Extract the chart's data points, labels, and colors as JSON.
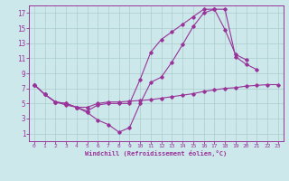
{
  "xlabel": "Windchill (Refroidissement éolien,°C)",
  "bg_color": "#cce8ea",
  "grid_color": "#aacccc",
  "line_color": "#993399",
  "xlim": [
    -0.5,
    23.5
  ],
  "ylim": [
    0,
    18
  ],
  "xticks": [
    0,
    1,
    2,
    3,
    4,
    5,
    6,
    7,
    8,
    9,
    10,
    11,
    12,
    13,
    14,
    15,
    16,
    17,
    18,
    19,
    20,
    21,
    22,
    23
  ],
  "yticks": [
    1,
    3,
    5,
    7,
    9,
    11,
    13,
    15,
    17
  ],
  "series1_x": [
    0,
    1,
    2,
    3,
    4,
    5,
    6,
    7,
    8,
    9,
    10,
    11,
    12,
    13,
    14,
    15,
    16,
    17,
    18,
    19,
    20,
    21,
    22,
    23
  ],
  "series1_y": [
    7.5,
    6.2,
    5.2,
    5.0,
    4.5,
    4.5,
    5.0,
    5.2,
    5.2,
    5.3,
    5.4,
    5.5,
    5.7,
    5.9,
    6.1,
    6.3,
    6.6,
    6.8,
    7.0,
    7.1,
    7.3,
    7.4,
    7.5,
    7.5
  ],
  "series2_x": [
    0,
    1,
    2,
    3,
    4,
    5,
    6,
    7,
    8,
    9,
    10,
    11,
    12,
    13,
    14,
    15,
    16,
    17,
    18,
    19,
    20,
    21
  ],
  "series2_y": [
    7.5,
    6.2,
    5.2,
    4.8,
    4.5,
    3.8,
    2.8,
    2.2,
    1.2,
    1.8,
    5.0,
    7.8,
    8.5,
    10.5,
    12.8,
    15.2,
    17.0,
    17.5,
    17.5,
    11.2,
    10.2,
    9.5
  ],
  "series3_x": [
    0,
    1,
    2,
    3,
    4,
    5,
    6,
    7,
    8,
    9,
    10,
    11,
    12,
    13,
    14,
    15,
    16,
    17,
    18,
    19,
    20
  ],
  "series3_y": [
    7.5,
    6.2,
    5.2,
    5.0,
    4.5,
    4.0,
    4.8,
    5.0,
    5.0,
    5.0,
    8.2,
    11.8,
    13.5,
    14.5,
    15.5,
    16.5,
    17.5,
    17.5,
    14.8,
    11.5,
    10.8
  ]
}
